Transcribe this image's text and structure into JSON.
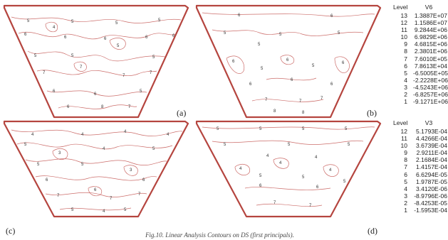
{
  "panels": [
    {
      "id": "a",
      "label": "(a)"
    },
    {
      "id": "b",
      "label": "(b)"
    },
    {
      "id": "c",
      "label": "(c)"
    },
    {
      "id": "d",
      "label": "(d)"
    }
  ],
  "legend_top": {
    "level_header": "Level",
    "variable": "V6",
    "rows": [
      {
        "level": "13",
        "value": "1.3887E+07"
      },
      {
        "level": "12",
        "value": "1.1586E+07"
      },
      {
        "level": "11",
        "value": "9.2844E+06"
      },
      {
        "level": "10",
        "value": "6.9829E+06"
      },
      {
        "level": "9",
        "value": "4.6815E+06"
      },
      {
        "level": "8",
        "value": "2.3801E+06"
      },
      {
        "level": "7",
        "value": "7.6010E+05"
      },
      {
        "level": "6",
        "value": "7.8613E+04"
      },
      {
        "level": "5",
        "value": "-6.5005E+05"
      },
      {
        "level": "4",
        "value": "-2.2228E+06"
      },
      {
        "level": "3",
        "value": "-4.5243E+06"
      },
      {
        "level": "2",
        "value": "-6.8257E+06"
      },
      {
        "level": "1",
        "value": "-9.1271E+06"
      }
    ]
  },
  "legend_bottom": {
    "level_header": "Level",
    "variable": "V3",
    "rows": [
      {
        "level": "12",
        "value": "5.1793E-04"
      },
      {
        "level": "11",
        "value": "4.4266E-04"
      },
      {
        "level": "10",
        "value": "3.6739E-04"
      },
      {
        "level": "9",
        "value": "2.9211E-04"
      },
      {
        "level": "8",
        "value": "2.1684E-04"
      },
      {
        "level": "7",
        "value": "1.4157E-04"
      },
      {
        "level": "6",
        "value": "6.6294E-05"
      },
      {
        "level": "5",
        "value": "1.9787E-05"
      },
      {
        "level": "4",
        "value": "3.4120E-06"
      },
      {
        "level": "3",
        "value": "-8.9796E-06"
      },
      {
        "level": "2",
        "value": "-8.4253E-05"
      },
      {
        "level": "1",
        "value": "-1.5953E-04"
      }
    ]
  },
  "caption": "Fig.10. Linear Analysis Contours on DS (first principals).",
  "contour_labels": {
    "a": [
      "5",
      "5",
      "5",
      "5",
      "4",
      "6",
      "6",
      "6",
      "6",
      "6",
      "5",
      "5",
      "5",
      "5",
      "7",
      "7",
      "7",
      "7",
      "6",
      "6",
      "5",
      "6",
      "8",
      "7"
    ],
    "b": [
      "6",
      "6",
      "5",
      "5",
      "5",
      "5",
      "6",
      "6",
      "6",
      "5",
      "5",
      "6",
      "6",
      "6",
      "7",
      "7",
      "7",
      "8",
      "8"
    ],
    "c": [
      "4",
      "4",
      "4",
      "4",
      "3",
      "4",
      "5",
      "5",
      "5",
      "5",
      "3",
      "6",
      "6",
      "6",
      "7",
      "7",
      "7",
      "5",
      "4",
      "5"
    ],
    "d": [
      "5",
      "5",
      "5",
      "5",
      "4",
      "4",
      "4",
      "5",
      "5",
      "5",
      "6",
      "6",
      "7",
      "7",
      "5",
      "5",
      "5",
      "4",
      "4"
    ]
  },
  "colors": {
    "outline": "#b5453f",
    "contour": "#cc6d6a"
  }
}
